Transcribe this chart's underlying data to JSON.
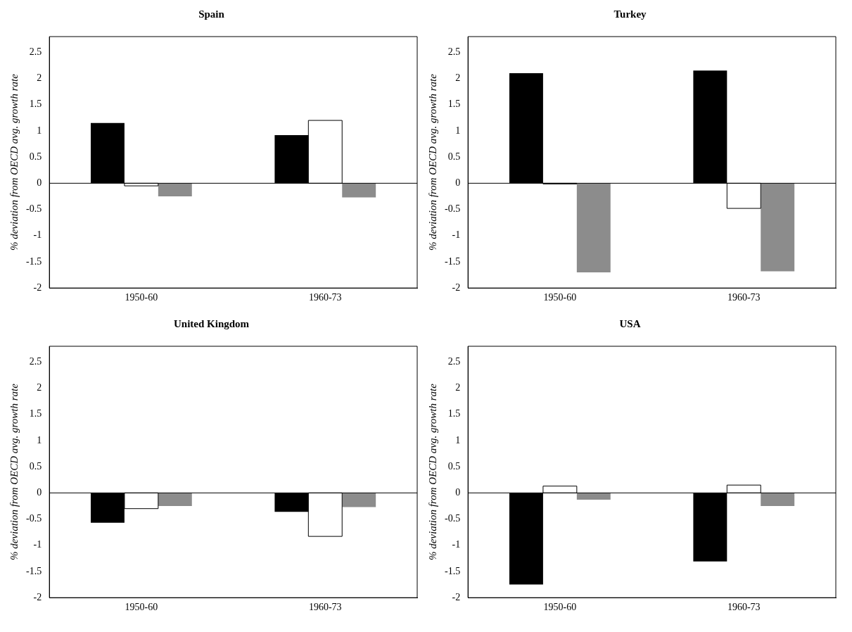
{
  "chart_data": [
    {
      "type": "bar",
      "title": "Spain",
      "ylabel": "% deviation from OECD avg. growth rate",
      "categories": [
        "1950-60",
        "1960-73"
      ],
      "series": [
        {
          "color": "#000000",
          "values": [
            1.15,
            0.92
          ]
        },
        {
          "color": "#ffffff",
          "values": [
            -0.05,
            1.2
          ]
        },
        {
          "color": "#8c8c8c",
          "values": [
            -0.25,
            -0.27
          ]
        }
      ],
      "ylim": [
        -2,
        2.8
      ],
      "yticks": [
        -2,
        -1.5,
        -1,
        -0.5,
        0,
        0.5,
        1,
        1.5,
        2,
        2.5
      ],
      "ref_lines": [
        {
          "axis": "y",
          "value": 0
        }
      ],
      "grid": false,
      "legend": false
    },
    {
      "type": "bar",
      "title": "Turkey",
      "ylabel": "% deviation from OECD avg. growth rate",
      "categories": [
        "1950-60",
        "1960-73"
      ],
      "series": [
        {
          "color": "#000000",
          "values": [
            2.1,
            2.15
          ]
        },
        {
          "color": "#ffffff",
          "values": [
            -0.01,
            -0.48
          ]
        },
        {
          "color": "#8c8c8c",
          "values": [
            -1.7,
            -1.68
          ]
        }
      ],
      "ylim": [
        -2,
        2.8
      ],
      "yticks": [
        -2,
        -1.5,
        -1,
        -0.5,
        0,
        0.5,
        1,
        1.5,
        2,
        2.5
      ],
      "ref_lines": [
        {
          "axis": "y",
          "value": 0
        }
      ],
      "grid": false,
      "legend": false
    },
    {
      "type": "bar",
      "title": "United Kingdom",
      "ylabel": "% deviation from OECD avg. growth rate",
      "categories": [
        "1950-60",
        "1960-73"
      ],
      "series": [
        {
          "color": "#000000",
          "values": [
            -0.57,
            -0.36
          ]
        },
        {
          "color": "#ffffff",
          "values": [
            -0.3,
            -0.83
          ]
        },
        {
          "color": "#8c8c8c",
          "values": [
            -0.25,
            -0.27
          ]
        }
      ],
      "ylim": [
        -2,
        2.8
      ],
      "yticks": [
        -2,
        -1.5,
        -1,
        -0.5,
        0,
        0.5,
        1,
        1.5,
        2,
        2.5
      ],
      "ref_lines": [
        {
          "axis": "y",
          "value": 0
        }
      ],
      "grid": false,
      "legend": false
    },
    {
      "type": "bar",
      "title": "USA",
      "ylabel": "% deviation from OECD avg. growth rate",
      "categories": [
        "1950-60",
        "1960-73"
      ],
      "series": [
        {
          "color": "#000000",
          "values": [
            -1.75,
            -1.31
          ]
        },
        {
          "color": "#ffffff",
          "values": [
            0.13,
            0.15
          ]
        },
        {
          "color": "#8c8c8c",
          "values": [
            -0.13,
            -0.25
          ]
        }
      ],
      "ylim": [
        -2,
        2.8
      ],
      "yticks": [
        -2,
        -1.5,
        -1,
        -0.5,
        0,
        0.5,
        1,
        1.5,
        2,
        2.5
      ],
      "ref_lines": [
        {
          "axis": "y",
          "value": 0
        }
      ],
      "grid": false,
      "legend": false
    }
  ]
}
